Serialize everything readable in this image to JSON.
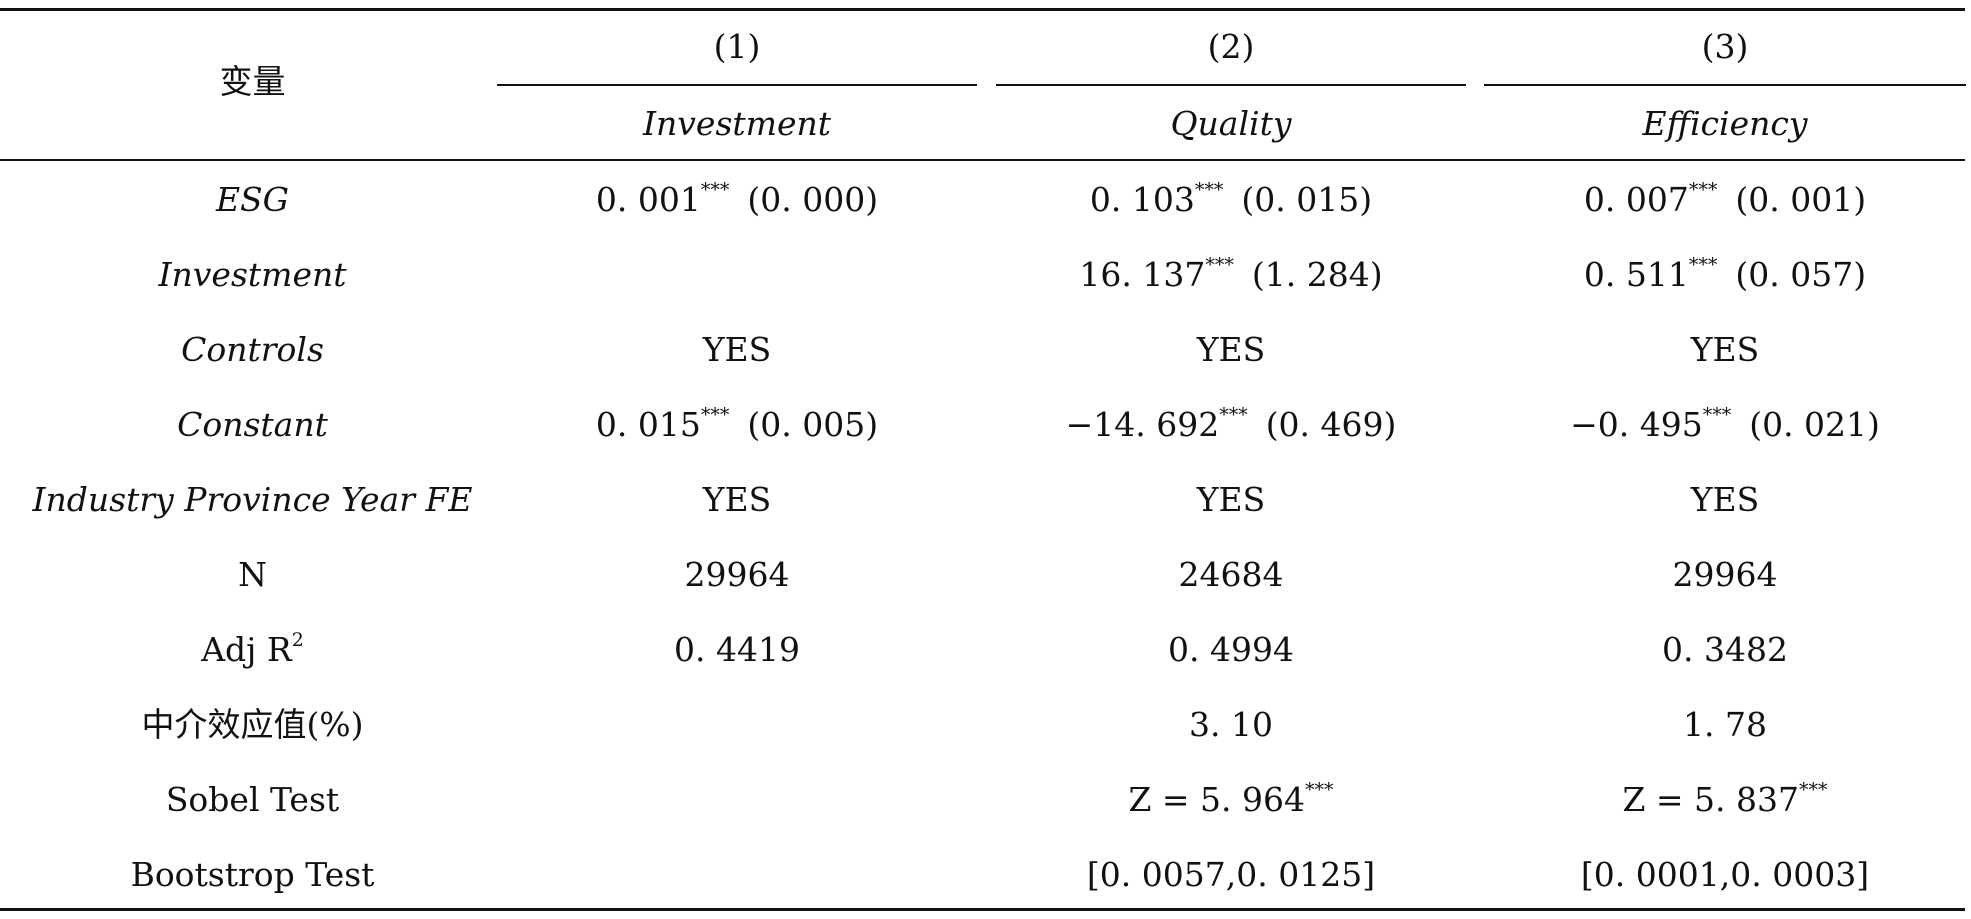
{
  "header": {
    "variable_label": "变量",
    "col_numbers": [
      "(1)",
      "(2)",
      "(3)"
    ],
    "col_names": [
      "Investment",
      "Quality",
      "Efficiency"
    ]
  },
  "rows": [
    {
      "label": "ESG",
      "italic": true,
      "cells": [
        {
          "coef": "0. 001",
          "stars": "***",
          "se": "(0. 000)"
        },
        {
          "coef": "0. 103",
          "stars": "***",
          "se": "(0. 015)"
        },
        {
          "coef": "0. 007",
          "stars": "***",
          "se": "(0. 001)"
        }
      ]
    },
    {
      "label": "Investment",
      "italic": true,
      "cells": [
        {
          "coef": "",
          "stars": "",
          "se": ""
        },
        {
          "coef": "16. 137",
          "stars": "***",
          "se": "(1. 284)"
        },
        {
          "coef": "0. 511",
          "stars": "***",
          "se": "(0. 057)"
        }
      ]
    },
    {
      "label": "Controls",
      "italic": true,
      "cells": [
        {
          "coef": "YES",
          "stars": "",
          "se": ""
        },
        {
          "coef": "YES",
          "stars": "",
          "se": ""
        },
        {
          "coef": "YES",
          "stars": "",
          "se": ""
        }
      ]
    },
    {
      "label": "Constant",
      "italic": true,
      "cells": [
        {
          "coef": "0. 015",
          "stars": "***",
          "se": "(0. 005)"
        },
        {
          "coef": "−14. 692",
          "stars": "***",
          "se": "(0. 469)"
        },
        {
          "coef": "−0. 495",
          "stars": "***",
          "se": "(0. 021)"
        }
      ]
    },
    {
      "label": "Industry Province Year FE",
      "italic": true,
      "cells": [
        {
          "coef": "YES",
          "stars": "",
          "se": ""
        },
        {
          "coef": "YES",
          "stars": "",
          "se": ""
        },
        {
          "coef": "YES",
          "stars": "",
          "se": ""
        }
      ]
    },
    {
      "label": "N",
      "italic": false,
      "cells": [
        {
          "coef": "29964",
          "stars": "",
          "se": ""
        },
        {
          "coef": "24684",
          "stars": "",
          "se": ""
        },
        {
          "coef": "29964",
          "stars": "",
          "se": ""
        }
      ]
    },
    {
      "label": "Adj R",
      "label_sup": "2",
      "italic": false,
      "cells": [
        {
          "coef": "0. 4419",
          "stars": "",
          "se": ""
        },
        {
          "coef": "0. 4994",
          "stars": "",
          "se": ""
        },
        {
          "coef": "0. 3482",
          "stars": "",
          "se": ""
        }
      ]
    },
    {
      "label": "中介效应值(%)",
      "italic": false,
      "cells": [
        {
          "coef": "",
          "stars": "",
          "se": ""
        },
        {
          "coef": "3. 10",
          "stars": "",
          "se": ""
        },
        {
          "coef": "1. 78",
          "stars": "",
          "se": ""
        }
      ]
    },
    {
      "label": "Sobel Test",
      "italic": false,
      "cells": [
        {
          "coef": "",
          "stars": "",
          "se": ""
        },
        {
          "coef": "Z = 5. 964",
          "stars": "***",
          "se": ""
        },
        {
          "coef": "Z = 5. 837",
          "stars": "***",
          "se": ""
        }
      ]
    },
    {
      "label": "Bootstrop Test",
      "italic": false,
      "cells": [
        {
          "coef": "",
          "stars": "",
          "se": ""
        },
        {
          "coef": "[0. 0057,0. 0125]",
          "stars": "",
          "se": ""
        },
        {
          "coef": "[0. 0001,0. 0003]",
          "stars": "",
          "se": ""
        }
      ]
    }
  ]
}
